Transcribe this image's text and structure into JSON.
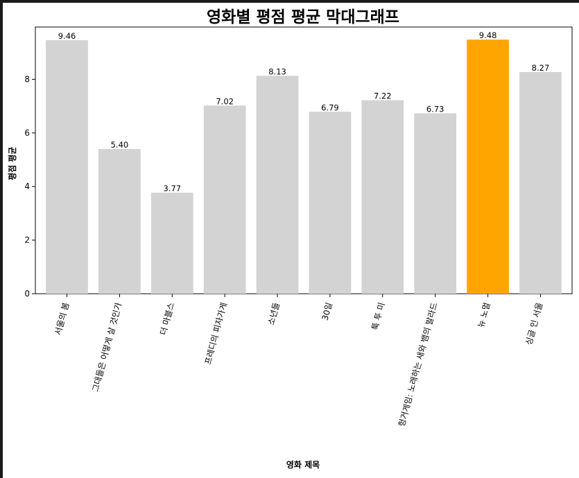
{
  "chart_data": {
    "type": "bar",
    "title": "영화별 평점 평균 막대그래프",
    "xlabel": "영화 제목",
    "ylabel": "평점 평균",
    "categories": [
      "서울의 봄",
      "그대들은 어떻게 살 것인가",
      "더 마블스",
      "프레디의 피자가게",
      "소년들",
      "30일",
      "툭 투 미",
      "헝거게임: 노래하는 새와 뱀의 발라드",
      "뉴 노멀",
      "싱글 인 서울"
    ],
    "values": [
      9.46,
      5.4,
      3.77,
      7.02,
      8.13,
      6.79,
      7.22,
      6.73,
      9.48,
      8.27
    ],
    "data_labels": [
      "9.46",
      "5.40",
      "3.77",
      "7.02",
      "8.13",
      "6.79",
      "7.22",
      "6.73",
      "9.48",
      "8.27"
    ],
    "highlight_index": 8,
    "ylim": [
      0,
      9.95
    ],
    "yticks": [
      0,
      2,
      4,
      6,
      8
    ],
    "grid": false,
    "bar_color": "#d3d3d3",
    "highlight_color": "#ffa500"
  }
}
